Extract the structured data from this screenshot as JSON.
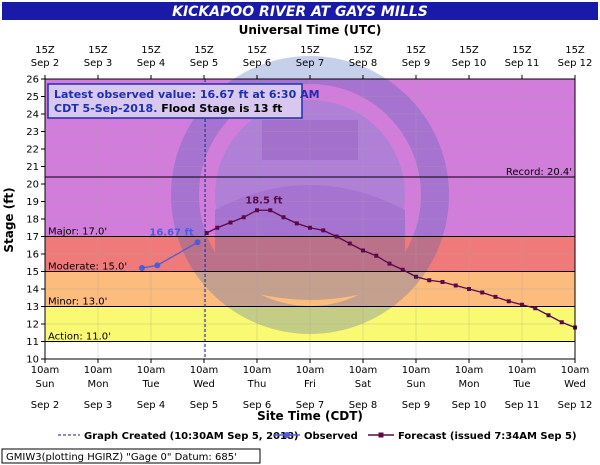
{
  "colors": {
    "title_bg": "#1a1aa8",
    "observed": "#4a5ddb",
    "forecast": "#5a0a4a",
    "record": "#d27ddb",
    "major": "#f07a7a",
    "moderate": "#fcbc7e",
    "minor": "#fafa72",
    "action": "#ffffff",
    "info_text": "#1e2fb0"
  },
  "title": "KICKAPOO RIVER AT GAYS MILLS",
  "top_axis_title": "Universal Time (UTC)",
  "bottom_axis_title": "Site Time (CDT)",
  "y_axis_title": "Stage (ft)",
  "info_box": {
    "line1": "Latest observed value: 16.67 ft at 6:30 AM",
    "line2a": "CDT 5-Sep-2018.",
    "line2b": " Flood Stage is 13 ft"
  },
  "legend": {
    "graph_created": "Graph Created (10:30AM Sep 5, 2018)",
    "observed": "Observed",
    "forecast": "Forecast (issued 7:34AM Sep 5)"
  },
  "footer": "GMIW3(plotting HGIRZ) \"Gage 0\" Datum: 685'",
  "chart_data": {
    "type": "line",
    "ylim": [
      10,
      26
    ],
    "xlim": [
      0,
      10
    ],
    "x_unit": "days since Sep 2 10am CDT",
    "y_ticks": [
      10,
      11,
      12,
      13,
      14,
      15,
      16,
      17,
      18,
      19,
      20,
      21,
      22,
      23,
      24,
      25,
      26
    ],
    "x_tick_positions": [
      0,
      1,
      2,
      3,
      4,
      5,
      6,
      7,
      8,
      9,
      10
    ],
    "top_ticks": [
      [
        "15Z",
        "Sep 2"
      ],
      [
        "15Z",
        "Sep 3"
      ],
      [
        "15Z",
        "Sep 4"
      ],
      [
        "15Z",
        "Sep 5"
      ],
      [
        "15Z",
        "Sep 6"
      ],
      [
        "15Z",
        "Sep 7"
      ],
      [
        "15Z",
        "Sep 8"
      ],
      [
        "15Z",
        "Sep 9"
      ],
      [
        "15Z",
        "Sep 10"
      ],
      [
        "15Z",
        "Sep 11"
      ],
      [
        "15Z",
        "Sep 12"
      ]
    ],
    "bottom_ticks": [
      [
        "10am",
        "Sun",
        "Sep 2"
      ],
      [
        "10am",
        "Mon",
        "Sep 3"
      ],
      [
        "10am",
        "Tue",
        "Sep 4"
      ],
      [
        "10am",
        "Wed",
        "Sep 5"
      ],
      [
        "10am",
        "Thu",
        "Sep 6"
      ],
      [
        "10am",
        "Fri",
        "Sep 7"
      ],
      [
        "10am",
        "Sat",
        "Sep 8"
      ],
      [
        "10am",
        "Sun",
        "Sep 9"
      ],
      [
        "10am",
        "Mon",
        "Sep 10"
      ],
      [
        "10am",
        "Tue",
        "Sep 11"
      ],
      [
        "10am",
        "Wed",
        "Sep 12"
      ]
    ],
    "bands": [
      {
        "from": 20.4,
        "to": 26,
        "color": "#d27ddb"
      },
      {
        "from": 17,
        "to": 20.4,
        "color": "#d27ddb"
      },
      {
        "from": 15,
        "to": 17,
        "color": "#f07a7a"
      },
      {
        "from": 13,
        "to": 15,
        "color": "#fcbc7e"
      },
      {
        "from": 11,
        "to": 13,
        "color": "#fafa72"
      },
      {
        "from": 10,
        "to": 11,
        "color": "#ffffff"
      }
    ],
    "thresholds": [
      {
        "name": "Record",
        "label": "Record: 20.4'",
        "value": 20.4,
        "side": "right"
      },
      {
        "name": "Major",
        "label": "Major: 17.0'",
        "value": 17.0,
        "side": "left"
      },
      {
        "name": "Moderate",
        "label": "Moderate: 15.0'",
        "value": 15.0,
        "side": "left"
      },
      {
        "name": "Minor",
        "label": "Minor: 13.0'",
        "value": 13.0,
        "side": "left"
      },
      {
        "name": "Action",
        "label": "Action: 11.0'",
        "value": 11.0,
        "side": "left"
      }
    ],
    "graph_created_x": 3.02,
    "series": [
      {
        "name": "Observed",
        "color": "#4a5ddb",
        "x": [
          1.83,
          2.12,
          2.88
        ],
        "y": [
          15.2,
          15.35,
          16.67
        ]
      },
      {
        "name": "Forecast",
        "color": "#5a0a4a",
        "x": [
          3.05,
          3.25,
          3.5,
          3.75,
          4.0,
          4.25,
          4.5,
          4.75,
          5.0,
          5.25,
          5.5,
          5.75,
          6.0,
          6.25,
          6.5,
          6.75,
          7.0,
          7.25,
          7.5,
          7.75,
          8.0,
          8.25,
          8.5,
          8.75,
          9.0,
          9.25,
          9.5,
          9.75,
          10.0
        ],
        "y": [
          17.2,
          17.5,
          17.8,
          18.1,
          18.5,
          18.5,
          18.1,
          17.75,
          17.5,
          17.35,
          17.0,
          16.6,
          16.2,
          15.9,
          15.45,
          15.1,
          14.7,
          14.5,
          14.4,
          14.2,
          14.0,
          13.8,
          13.55,
          13.3,
          13.1,
          12.9,
          12.5,
          12.1,
          11.8
        ]
      }
    ],
    "annotations": [
      {
        "text": "16.67 ft",
        "x": 2.88,
        "y": 16.67,
        "series": "Observed"
      },
      {
        "text": "18.5 ft",
        "x": 4.13,
        "y": 18.5,
        "series": "Forecast"
      }
    ]
  }
}
